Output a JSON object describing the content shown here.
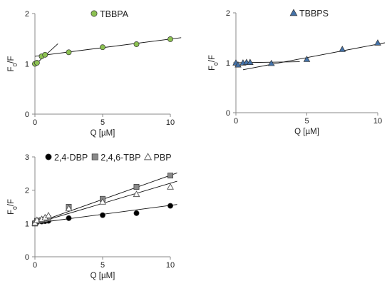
{
  "chart_data": [
    {
      "type": "scatter",
      "panel": "top-left",
      "xlabel": "Q [µM]",
      "ylabel": "F",
      "ylabel_sub": "0",
      "ylabel_tail": "/F",
      "xlim": [
        0,
        10
      ],
      "ylim": [
        0,
        2
      ],
      "xticks": [
        "0",
        "5",
        "10"
      ],
      "yticks": [
        "0",
        "1",
        "2"
      ],
      "legend_position": "top",
      "series": [
        {
          "name": "TBBPA",
          "marker": "circle",
          "color": "#8cc152",
          "points": [
            [
              0,
              1.0
            ],
            [
              0.15,
              1.02
            ],
            [
              0.5,
              1.15
            ],
            [
              0.75,
              1.18
            ],
            [
              2.5,
              1.23
            ],
            [
              5,
              1.33
            ],
            [
              7.5,
              1.39
            ],
            [
              10,
              1.49
            ]
          ]
        }
      ],
      "fit_lines": [
        {
          "series": "TBBPA",
          "x": [
            0,
            10.8
          ],
          "y": [
            1.15,
            1.52
          ]
        },
        {
          "series": "TBBPA",
          "x": [
            0,
            1.7
          ],
          "y": [
            0.98,
            1.4
          ]
        }
      ]
    },
    {
      "type": "scatter",
      "panel": "top-right",
      "xlabel": "Q [µM]",
      "ylabel": "F",
      "ylabel_sub": "0",
      "ylabel_tail": "/F",
      "xlim": [
        0,
        10
      ],
      "ylim": [
        0,
        2
      ],
      "xticks": [
        "0",
        "5",
        "10"
      ],
      "yticks": [
        "0",
        "1",
        "2"
      ],
      "legend_position": "top",
      "series": [
        {
          "name": "TBBPS",
          "marker": "triangle",
          "color": "#4472a8",
          "points": [
            [
              0,
              1.0
            ],
            [
              0.15,
              0.96
            ],
            [
              0.5,
              1.0
            ],
            [
              0.75,
              1.01
            ],
            [
              1.0,
              1.01
            ],
            [
              2.5,
              0.99
            ],
            [
              5,
              1.07
            ],
            [
              7.5,
              1.27
            ],
            [
              10,
              1.4
            ]
          ]
        }
      ],
      "fit_lines": [
        {
          "series": "TBBPS",
          "x": [
            0.5,
            10.5
          ],
          "y": [
            0.86,
            1.4
          ]
        },
        {
          "series": "TBBPS",
          "x": [
            0,
            4.5
          ],
          "y": [
            1.0,
            1.02
          ]
        }
      ]
    },
    {
      "type": "scatter",
      "panel": "bottom-left",
      "xlabel": "Q [µM]",
      "ylabel": "F",
      "ylabel_sub": "0",
      "ylabel_tail": "/F",
      "xlim": [
        0,
        10
      ],
      "ylim": [
        0,
        3
      ],
      "xticks": [
        "0",
        "5",
        "10"
      ],
      "yticks": [
        "0",
        "1",
        "2",
        "3"
      ],
      "legend_position": "top",
      "series": [
        {
          "name": "2,4-DBP",
          "marker": "circle",
          "color": "#000000",
          "points": [
            [
              0,
              1.02
            ],
            [
              0.15,
              1.04
            ],
            [
              0.5,
              1.06
            ],
            [
              0.75,
              1.07
            ],
            [
              1.0,
              1.08
            ],
            [
              2.5,
              1.16
            ],
            [
              5,
              1.25
            ],
            [
              7.5,
              1.31
            ],
            [
              10,
              1.53
            ]
          ]
        },
        {
          "name": "2,4,6-TBP",
          "marker": "square",
          "color": "#8a8a8a",
          "points": [
            [
              0,
              1.0
            ],
            [
              0.15,
              1.08
            ],
            [
              0.5,
              1.1
            ],
            [
              0.75,
              1.12
            ],
            [
              1.0,
              1.15
            ],
            [
              2.5,
              1.5
            ],
            [
              5,
              1.74
            ],
            [
              7.5,
              2.1
            ],
            [
              10,
              2.44
            ]
          ]
        },
        {
          "name": "PBP",
          "marker": "triangle-open",
          "color": "#555555",
          "points": [
            [
              0,
              1.02
            ],
            [
              0.15,
              1.1
            ],
            [
              0.5,
              1.13
            ],
            [
              0.75,
              1.18
            ],
            [
              1.0,
              1.24
            ],
            [
              2.5,
              1.45
            ],
            [
              5,
              1.65
            ],
            [
              7.5,
              1.88
            ],
            [
              10,
              2.1
            ]
          ]
        }
      ],
      "fit_lines": [
        {
          "series": "2,4-DBP",
          "x": [
            0,
            10.5
          ],
          "y": [
            1.01,
            1.57
          ]
        },
        {
          "series": "2,4,6-TBP",
          "x": [
            0,
            10.5
          ],
          "y": [
            1.0,
            2.52
          ]
        },
        {
          "series": "PBP",
          "x": [
            0,
            10.5
          ],
          "y": [
            1.0,
            2.27
          ]
        }
      ]
    }
  ]
}
